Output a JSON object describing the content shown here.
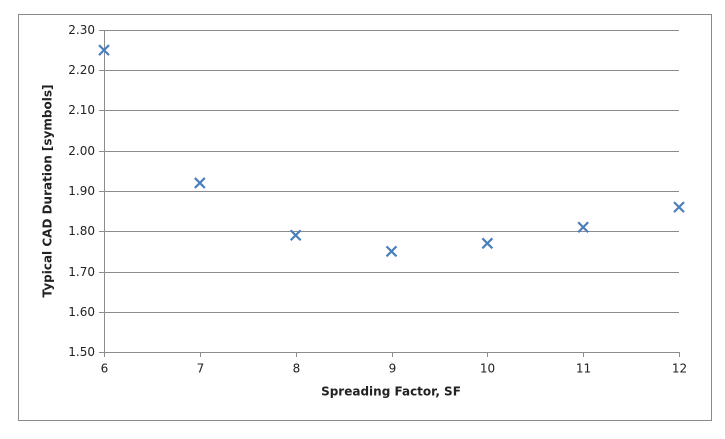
{
  "chart_data": {
    "type": "scatter",
    "x_label": "Spreading Factor, SF",
    "y_label": "Typical  CAD Duration [symbols]",
    "series": [
      {
        "color": "#4a7ebb",
        "x": [
          6,
          7,
          8,
          9,
          10,
          11,
          12
        ],
        "values": [
          2.25,
          1.92,
          1.79,
          1.75,
          1.77,
          1.81,
          1.86
        ]
      }
    ],
    "xlim": [
      6,
      12
    ],
    "xticks": [
      6,
      7,
      8,
      9,
      10,
      11,
      12
    ],
    "ylim": [
      1.5,
      2.3
    ],
    "yticks": [
      {
        "value": 1.5,
        "label": "1.50"
      },
      {
        "value": 1.6,
        "label": "1.60"
      },
      {
        "value": 1.7,
        "label": "1.70"
      },
      {
        "value": 1.8,
        "label": "1.80"
      },
      {
        "value": 1.9,
        "label": "1.90"
      },
      {
        "value": 2.0,
        "label": "2.00"
      },
      {
        "value": 2.1,
        "label": "2.10"
      },
      {
        "value": 2.2,
        "label": "2.20"
      },
      {
        "value": 2.3,
        "label": "2.30"
      }
    ],
    "grid": true
  }
}
